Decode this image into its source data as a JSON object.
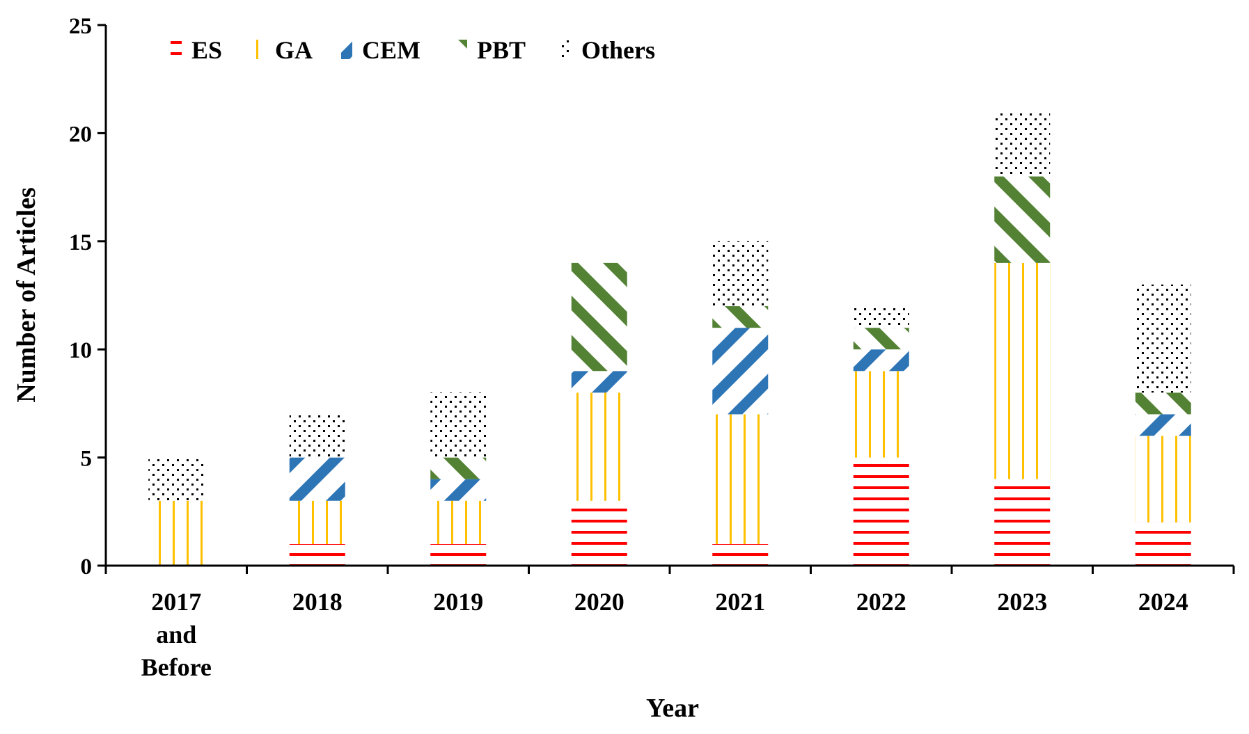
{
  "chart_data": {
    "type": "bar",
    "stacked": true,
    "title": "",
    "xlabel": "Year",
    "ylabel": "Number of Articles",
    "ylim": [
      0,
      25
    ],
    "yticks": [
      0,
      5,
      10,
      15,
      20,
      25
    ],
    "grid": false,
    "legend_position": "top-left",
    "categories": [
      [
        "2017",
        "and",
        "Before"
      ],
      [
        "2018"
      ],
      [
        "2019"
      ],
      [
        "2020"
      ],
      [
        "2021"
      ],
      [
        "2022"
      ],
      [
        "2023"
      ],
      [
        "2024"
      ]
    ],
    "series": [
      {
        "name": "ES",
        "pattern": "horizontal-lines",
        "color": "#ff0000",
        "values": [
          0,
          1,
          1,
          3,
          1,
          5,
          4,
          2
        ]
      },
      {
        "name": "GA",
        "pattern": "vertical-lines",
        "color": "#ffc000",
        "values": [
          3,
          2,
          2,
          5,
          6,
          4,
          10,
          4
        ]
      },
      {
        "name": "CEM",
        "pattern": "diagonal-stripes",
        "color": "#2e75b6",
        "values": [
          0,
          2,
          1,
          1,
          4,
          1,
          0,
          1
        ]
      },
      {
        "name": "PBT",
        "pattern": "diagonal-stripes",
        "color": "#548235",
        "values": [
          0,
          0,
          1,
          5,
          1,
          1,
          4,
          1
        ]
      },
      {
        "name": "Others",
        "pattern": "dots",
        "color": "#000000",
        "values": [
          2,
          2,
          3,
          0,
          3,
          1,
          3,
          5
        ]
      }
    ]
  }
}
